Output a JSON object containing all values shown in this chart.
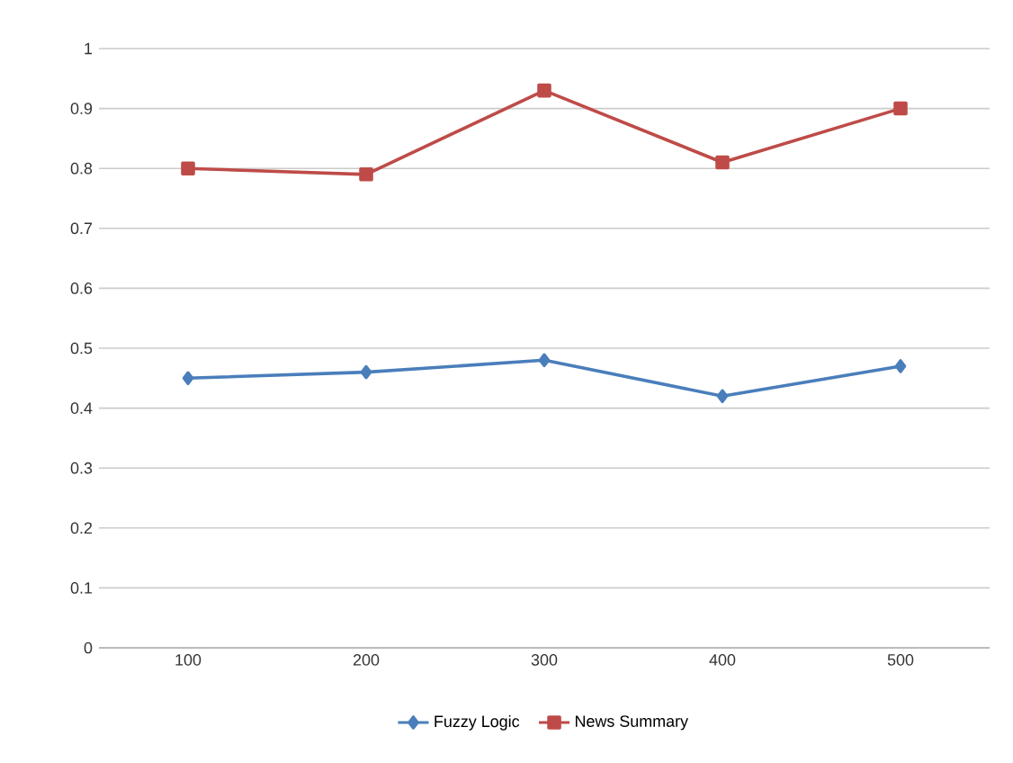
{
  "chart_data": {
    "type": "line",
    "categories": [
      "100",
      "200",
      "300",
      "400",
      "500"
    ],
    "series": [
      {
        "name": "Fuzzy Logic",
        "color": "#4a7ebb",
        "marker": "diamond",
        "values": [
          0.45,
          0.46,
          0.48,
          0.42,
          0.47
        ]
      },
      {
        "name": "News Summary",
        "color": "#be4b48",
        "marker": "square",
        "values": [
          0.8,
          0.79,
          0.93,
          0.81,
          0.9
        ]
      }
    ],
    "ylim": [
      0,
      1
    ],
    "yticks": [
      0,
      0.1,
      0.2,
      0.3,
      0.4,
      0.5,
      0.6,
      0.7,
      0.8,
      0.9,
      1
    ],
    "grid": "y",
    "legend": "bottom",
    "line_style": "solid"
  }
}
